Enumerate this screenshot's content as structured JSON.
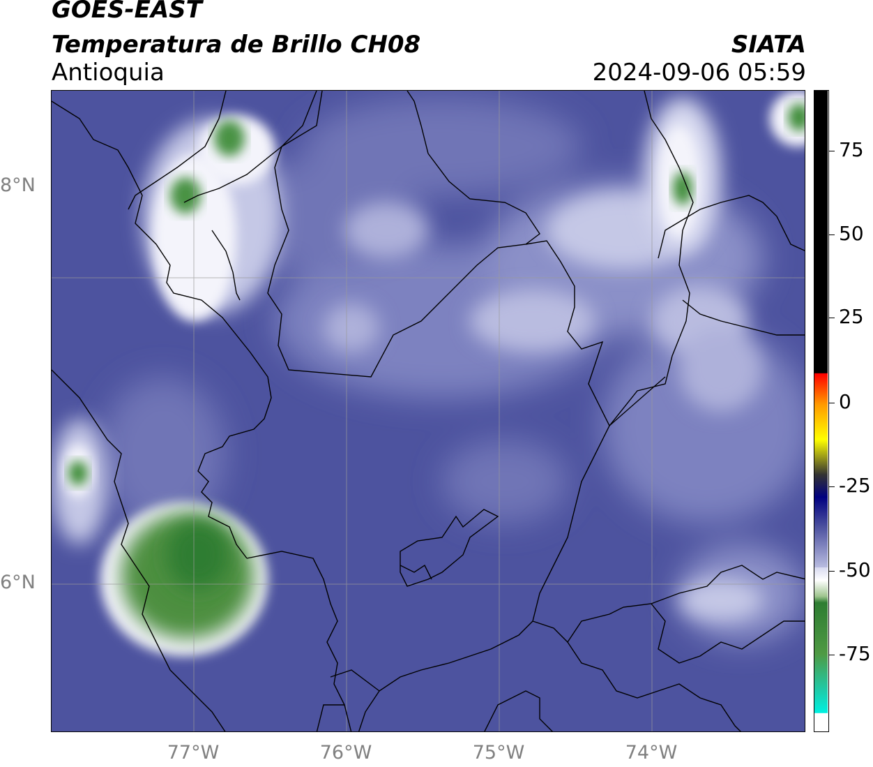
{
  "header": {
    "satellite": "GOES-EAST",
    "product": "Temperatura de Brillo CH08",
    "region": "Antioquia",
    "organization": "SIATA",
    "datetime": "2024-09-06 05:59"
  },
  "axes": {
    "latitude_labels": [
      "8°N",
      "6°N"
    ],
    "longitude_labels": [
      "77°W",
      "76°W",
      "75°W",
      "74°W"
    ]
  },
  "colorbar": {
    "tick_labels": [
      "75",
      "50",
      "25",
      "0",
      "-25",
      "-50",
      "-75"
    ],
    "colors": {
      "warm_top": "#000000",
      "red": "#ff0000",
      "orange": "#ff9900",
      "yellow": "#ffff00",
      "navy": "#000080",
      "blue_purple": "#4a4f9e",
      "lavender": "#b9bce0",
      "white": "#ffffff",
      "green": "#2e7d32",
      "teal": "#20c9a6",
      "cyan": "#00f0e0"
    }
  },
  "map_colors": {
    "background": "#4d539f",
    "light": "#8b90c8",
    "lighter": "#c5c8e6",
    "cloud_white": "#f4f4fb",
    "cloud_green": "#3f8d3a"
  }
}
